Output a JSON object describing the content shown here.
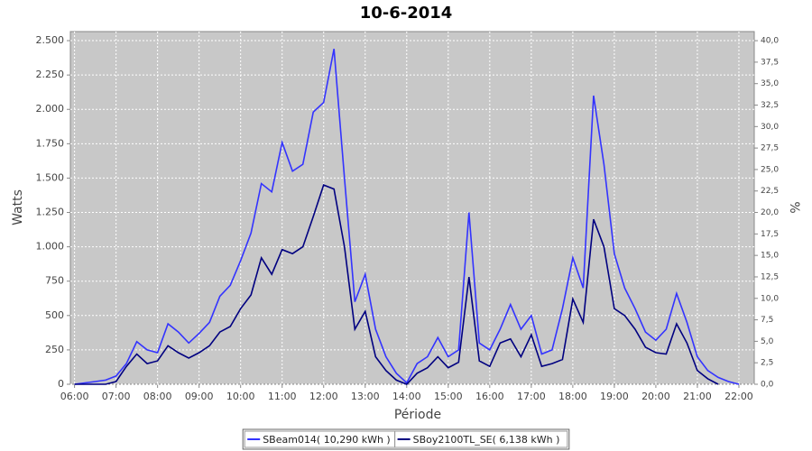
{
  "chart_data": {
    "type": "line",
    "title": "10-6-2014",
    "x_label": "Période",
    "y_label": "Watts",
    "y2_label": "%",
    "x": [
      6.0,
      6.25,
      6.5,
      6.75,
      7.0,
      7.25,
      7.5,
      7.75,
      8.0,
      8.25,
      8.5,
      8.75,
      9.0,
      9.25,
      9.5,
      9.75,
      10.0,
      10.25,
      10.5,
      10.75,
      11.0,
      11.25,
      11.5,
      11.75,
      12.0,
      12.25,
      12.5,
      12.75,
      13.0,
      13.25,
      13.5,
      13.75,
      14.0,
      14.25,
      14.5,
      14.75,
      15.0,
      15.25,
      15.5,
      15.75,
      16.0,
      16.25,
      16.5,
      16.75,
      17.0,
      17.25,
      17.5,
      17.75,
      18.0,
      18.25,
      18.5,
      18.75,
      19.0,
      19.25,
      19.5,
      19.75,
      20.0,
      20.25,
      20.5,
      20.75,
      21.0,
      21.25,
      21.5,
      21.75,
      22.0
    ],
    "series": [
      {
        "name": "SBeam014( 10,290 kWh )",
        "color": "#3333ff",
        "values": [
          0,
          10,
          20,
          30,
          60,
          150,
          310,
          250,
          230,
          440,
          380,
          300,
          370,
          450,
          640,
          720,
          900,
          1100,
          1460,
          1400,
          1760,
          1550,
          1600,
          1980,
          2050,
          2440,
          1500,
          600,
          800,
          400,
          200,
          80,
          10,
          150,
          200,
          340,
          200,
          250,
          1250,
          300,
          250,
          400,
          580,
          400,
          500,
          220,
          250,
          550,
          920,
          700,
          2100,
          1600,
          950,
          700,
          550,
          380,
          320,
          400,
          660,
          450,
          200,
          100,
          50,
          20,
          0
        ]
      },
      {
        "name": "SBoy2100TL_SE( 6,138 kWh )",
        "color": "#000080",
        "values": [
          0,
          0,
          0,
          0,
          20,
          130,
          220,
          150,
          170,
          280,
          230,
          190,
          230,
          280,
          380,
          420,
          550,
          650,
          920,
          800,
          980,
          950,
          1000,
          1220,
          1450,
          1420,
          1000,
          400,
          530,
          200,
          100,
          30,
          0,
          80,
          120,
          200,
          120,
          160,
          780,
          170,
          130,
          300,
          330,
          200,
          360,
          130,
          150,
          180,
          620,
          450,
          1200,
          1000,
          550,
          500,
          400,
          270,
          230,
          220,
          440,
          300,
          100,
          40,
          0,
          null,
          null
        ]
      }
    ],
    "xlim": [
      5.9,
      22.37
    ],
    "xticks": [
      {
        "value": 6,
        "label": "06:00"
      },
      {
        "value": 7,
        "label": "07:00"
      },
      {
        "value": 8,
        "label": "08:00"
      },
      {
        "value": 9,
        "label": "09:00"
      },
      {
        "value": 10,
        "label": "10:00"
      },
      {
        "value": 11,
        "label": "11:00"
      },
      {
        "value": 12,
        "label": "12:00"
      },
      {
        "value": 13,
        "label": "13:00"
      },
      {
        "value": 14,
        "label": "14:00"
      },
      {
        "value": 15,
        "label": "15:00"
      },
      {
        "value": 16,
        "label": "16:00"
      },
      {
        "value": 17,
        "label": "17:00"
      },
      {
        "value": 18,
        "label": "18:00"
      },
      {
        "value": 19,
        "label": "19:00"
      },
      {
        "value": 20,
        "label": "20:00"
      },
      {
        "value": 21,
        "label": "21:00"
      },
      {
        "value": 22,
        "label": "22:00"
      }
    ],
    "ylim": [
      0,
      2566
    ],
    "yticks": [
      0,
      250,
      500,
      750,
      {
        "value": 1000,
        "label": "1.000"
      },
      {
        "value": 1250,
        "label": "1.250"
      },
      {
        "value": 1500,
        "label": "1.500"
      },
      {
        "value": 1750,
        "label": "1.750"
      },
      {
        "value": 2000,
        "label": "2.000"
      },
      {
        "value": 2250,
        "label": "2.250"
      },
      {
        "value": 2500,
        "label": "2.500"
      }
    ],
    "y2lim": [
      0,
      41.06
    ],
    "y2ticks": [
      {
        "value": 0,
        "label": "0,0"
      },
      {
        "value": 2.5,
        "label": "2,5"
      },
      {
        "value": 5,
        "label": "5,0"
      },
      {
        "value": 7.5,
        "label": "7,5"
      },
      {
        "value": 10,
        "label": "10,0"
      },
      {
        "value": 12.5,
        "label": "12,5"
      },
      {
        "value": 15,
        "label": "15,0"
      },
      {
        "value": 17.5,
        "label": "17,5"
      },
      {
        "value": 20,
        "label": "20,0"
      },
      {
        "value": 22.5,
        "label": "22,5"
      },
      {
        "value": 25,
        "label": "25,0"
      },
      {
        "value": 27.5,
        "label": "27,5"
      },
      {
        "value": 30,
        "label": "30,0"
      },
      {
        "value": 32.5,
        "label": "32,5"
      },
      {
        "value": 35,
        "label": "35,0"
      },
      {
        "value": 37.5,
        "label": "37,5"
      },
      {
        "value": 40,
        "label": "40,0"
      }
    ],
    "grid": true,
    "legend": "bottom",
    "plot_background": "#c8c8c8"
  }
}
